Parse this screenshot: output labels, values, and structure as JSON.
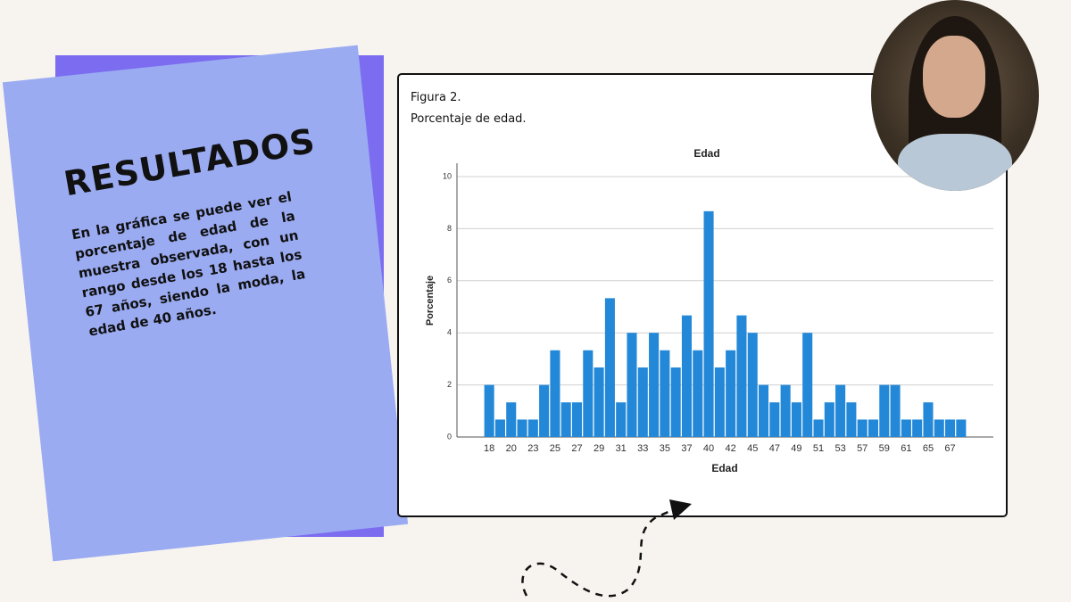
{
  "heading": "RESULTADOS",
  "paragraph": "En la gráfica se puede ver el porcentaje de edad de la muestra observada, con un rango desde los 18 hasta los 67 años, siendo la moda, la edad de 40 años.",
  "figure_label": "Figura 2.",
  "figure_caption": "Porcentaje de edad.",
  "chart_data": {
    "type": "bar",
    "title": "Edad",
    "x_label": "Edad",
    "y_label": "Porcentaje",
    "categories": [
      "18",
      null,
      "20",
      null,
      "23",
      null,
      "25",
      null,
      "27",
      null,
      "29",
      null,
      "31",
      null,
      "33",
      null,
      "35",
      null,
      "37",
      null,
      "40",
      null,
      "42",
      null,
      "45",
      null,
      "47",
      null,
      "49",
      null,
      "51",
      null,
      "53",
      null,
      "57",
      null,
      "59",
      null,
      "61",
      null,
      "65",
      null,
      "67",
      null
    ],
    "values": [
      2.0,
      0.67,
      1.33,
      0.67,
      0.67,
      2.0,
      3.33,
      1.33,
      1.33,
      3.33,
      2.67,
      5.33,
      1.33,
      4.0,
      2.67,
      4.0,
      3.33,
      2.67,
      4.67,
      3.33,
      8.67,
      2.67,
      3.33,
      4.67,
      4.0,
      2.0,
      1.33,
      2.0,
      1.33,
      4.0,
      0.67,
      1.33,
      2.0,
      1.33,
      0.67,
      0.67,
      2.0,
      2.0,
      0.67,
      0.67,
      1.33,
      0.67,
      0.67,
      0.67
    ],
    "color": "#2388d8",
    "ylim": [
      0,
      10
    ],
    "yticks": [
      0,
      2,
      4,
      6,
      8,
      10
    ],
    "grid": true
  }
}
